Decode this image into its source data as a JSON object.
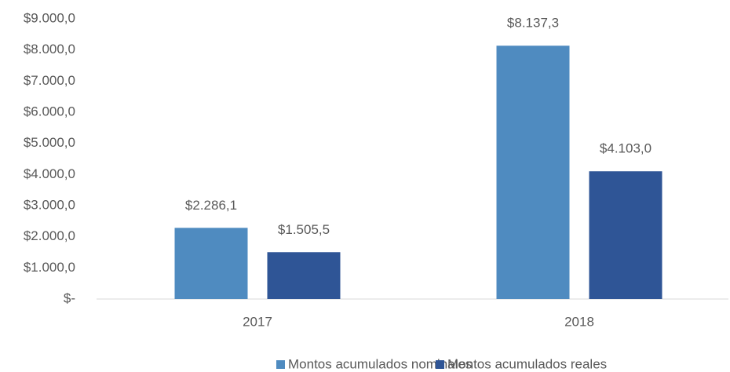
{
  "chart_data": {
    "type": "bar",
    "categories": [
      "2017",
      "2018"
    ],
    "series": [
      {
        "name": "Montos acumulados nominales",
        "color": "#4f8bc0",
        "values": [
          2286.1,
          8137.3
        ],
        "value_labels": [
          "$2.286,1",
          "$8.137,3"
        ]
      },
      {
        "name": "Montos acumulados reales",
        "color": "#2f5596",
        "values": [
          1505.5,
          4103.0
        ],
        "value_labels": [
          "$1.505,5",
          "$4.103,0"
        ]
      }
    ],
    "ylim": [
      0,
      9000
    ],
    "yticks": [
      {
        "value": 0,
        "label": "$-"
      },
      {
        "value": 1000,
        "label": "$1.000,0"
      },
      {
        "value": 2000,
        "label": "$2.000,0"
      },
      {
        "value": 3000,
        "label": "$3.000,0"
      },
      {
        "value": 4000,
        "label": "$4.000,0"
      },
      {
        "value": 5000,
        "label": "$5.000,0"
      },
      {
        "value": 6000,
        "label": "$6.000,0"
      },
      {
        "value": 7000,
        "label": "$7.000,0"
      },
      {
        "value": 8000,
        "label": "$8.000,0"
      },
      {
        "value": 9000,
        "label": "$9.000,0"
      }
    ],
    "grid": false,
    "legend": "bottom"
  }
}
